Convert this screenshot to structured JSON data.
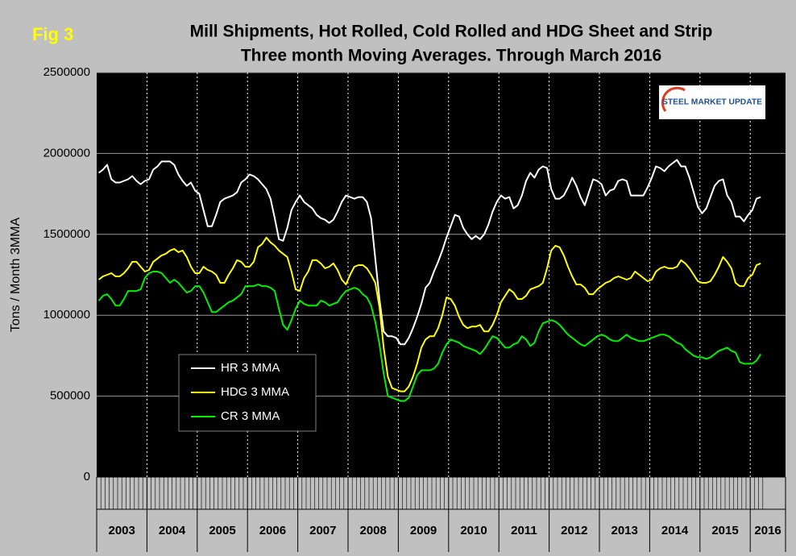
{
  "chart_data": {
    "type": "line",
    "figure_label": "Fig 3",
    "title": "Mill Shipments, Hot Rolled, Cold Rolled and HDG Sheet and Strip",
    "subtitle": "Three month Moving Averages. Through March 2016",
    "logo": "STEEL MARKET UPDATE",
    "y_label": "Tons / Month 3MMA",
    "categories": [
      "2003",
      "2004",
      "2005",
      "2006",
      "2007",
      "2008",
      "2009",
      "2010",
      "2011",
      "2012",
      "2013",
      "2014",
      "2015",
      "2016"
    ],
    "ylim": [
      0,
      2500000
    ],
    "yticks": [
      0,
      500000,
      1000000,
      1500000,
      2000000,
      2500000
    ],
    "grid": true,
    "legend_position": "lower-left",
    "series": [
      {
        "name": "HR 3 MMA",
        "color": "#ffffff",
        "values": [
          [
            1880000,
            1900000,
            1930000,
            1840000,
            1820000,
            1820000,
            1830000,
            1840000,
            1860000,
            1830000,
            1810000,
            1830000
          ],
          [
            1840000,
            1900000,
            1920000,
            1950000,
            1950000,
            1950000,
            1930000,
            1870000,
            1830000,
            1800000,
            1820000,
            1770000
          ],
          [
            1750000,
            1650000,
            1550000,
            1550000,
            1620000,
            1700000,
            1720000,
            1730000,
            1740000,
            1760000,
            1820000,
            1840000
          ],
          [
            1870000,
            1860000,
            1840000,
            1810000,
            1780000,
            1720000,
            1600000,
            1470000,
            1460000,
            1540000,
            1650000,
            1700000
          ],
          [
            1740000,
            1700000,
            1680000,
            1660000,
            1620000,
            1600000,
            1590000,
            1570000,
            1590000,
            1640000,
            1700000,
            1740000
          ],
          [
            1730000,
            1720000,
            1730000,
            1730000,
            1700000,
            1600000,
            1350000,
            1100000,
            900000,
            870000,
            870000,
            860000
          ],
          [
            820000,
            820000,
            860000,
            920000,
            990000,
            1070000,
            1170000,
            1200000,
            1270000,
            1330000,
            1400000,
            1480000
          ],
          [
            1550000,
            1620000,
            1610000,
            1540000,
            1500000,
            1470000,
            1490000,
            1470000,
            1500000,
            1560000,
            1640000,
            1700000
          ],
          [
            1740000,
            1720000,
            1730000,
            1660000,
            1680000,
            1740000,
            1830000,
            1880000,
            1850000,
            1900000,
            1920000,
            1910000
          ],
          [
            1780000,
            1720000,
            1720000,
            1740000,
            1790000,
            1850000,
            1800000,
            1730000,
            1680000,
            1760000,
            1840000,
            1830000
          ],
          [
            1810000,
            1740000,
            1770000,
            1780000,
            1830000,
            1840000,
            1830000,
            1740000,
            1740000,
            1740000,
            1740000,
            1790000
          ],
          [
            1850000,
            1920000,
            1910000,
            1890000,
            1920000,
            1940000,
            1960000,
            1920000,
            1920000,
            1850000,
            1760000,
            1670000
          ],
          [
            1630000,
            1660000,
            1730000,
            1800000,
            1830000,
            1840000,
            1740000,
            1700000,
            1610000,
            1610000,
            1580000,
            1620000
          ],
          [
            1650000,
            1720000,
            1730000
          ]
        ]
      },
      {
        "name": "HDG 3 MMA",
        "color": "#ffff00",
        "values": [
          [
            1220000,
            1240000,
            1250000,
            1260000,
            1240000,
            1240000,
            1260000,
            1290000,
            1330000,
            1330000,
            1300000,
            1270000
          ],
          [
            1280000,
            1330000,
            1350000,
            1370000,
            1380000,
            1400000,
            1410000,
            1390000,
            1400000,
            1360000,
            1300000,
            1260000
          ],
          [
            1260000,
            1300000,
            1280000,
            1270000,
            1250000,
            1200000,
            1200000,
            1250000,
            1290000,
            1340000,
            1330000,
            1300000
          ],
          [
            1300000,
            1330000,
            1420000,
            1440000,
            1480000,
            1450000,
            1430000,
            1400000,
            1380000,
            1360000,
            1270000,
            1160000
          ],
          [
            1150000,
            1230000,
            1270000,
            1340000,
            1340000,
            1320000,
            1290000,
            1300000,
            1320000,
            1280000,
            1220000,
            1190000
          ],
          [
            1250000,
            1300000,
            1310000,
            1310000,
            1290000,
            1250000,
            1200000,
            1050000,
            800000,
            620000,
            550000,
            540000
          ],
          [
            530000,
            530000,
            560000,
            620000,
            700000,
            800000,
            850000,
            870000,
            870000,
            920000,
            1000000,
            1110000
          ],
          [
            1100000,
            1060000,
            990000,
            940000,
            920000,
            930000,
            930000,
            940000,
            900000,
            900000,
            940000,
            1000000
          ],
          [
            1080000,
            1120000,
            1160000,
            1140000,
            1100000,
            1100000,
            1120000,
            1160000,
            1170000,
            1180000,
            1200000,
            1290000
          ],
          [
            1400000,
            1430000,
            1420000,
            1370000,
            1300000,
            1240000,
            1190000,
            1190000,
            1170000,
            1130000,
            1130000,
            1160000
          ],
          [
            1180000,
            1200000,
            1210000,
            1230000,
            1240000,
            1230000,
            1220000,
            1230000,
            1270000,
            1250000,
            1230000,
            1210000
          ],
          [
            1220000,
            1270000,
            1290000,
            1300000,
            1290000,
            1290000,
            1300000,
            1340000,
            1320000,
            1290000,
            1250000,
            1210000
          ],
          [
            1200000,
            1200000,
            1210000,
            1250000,
            1300000,
            1360000,
            1330000,
            1290000,
            1200000,
            1180000,
            1180000,
            1230000
          ],
          [
            1250000,
            1310000,
            1320000
          ]
        ]
      },
      {
        "name": "CR 3 MMA",
        "color": "#00ee00",
        "values": [
          [
            1090000,
            1120000,
            1130000,
            1100000,
            1060000,
            1060000,
            1100000,
            1150000,
            1150000,
            1150000,
            1160000,
            1230000
          ],
          [
            1260000,
            1270000,
            1270000,
            1260000,
            1230000,
            1200000,
            1220000,
            1200000,
            1170000,
            1140000,
            1150000,
            1180000
          ],
          [
            1180000,
            1140000,
            1080000,
            1020000,
            1020000,
            1040000,
            1060000,
            1080000,
            1090000,
            1110000,
            1130000,
            1180000
          ],
          [
            1180000,
            1180000,
            1190000,
            1180000,
            1180000,
            1170000,
            1150000,
            1040000,
            940000,
            910000,
            970000,
            1040000
          ],
          [
            1090000,
            1070000,
            1060000,
            1060000,
            1060000,
            1090000,
            1080000,
            1060000,
            1070000,
            1080000,
            1120000,
            1150000
          ],
          [
            1160000,
            1170000,
            1160000,
            1130000,
            1110000,
            1060000,
            960000,
            820000,
            640000,
            500000,
            490000,
            480000
          ],
          [
            470000,
            470000,
            490000,
            560000,
            630000,
            660000,
            660000,
            660000,
            670000,
            700000,
            770000,
            820000
          ],
          [
            850000,
            840000,
            830000,
            810000,
            800000,
            790000,
            780000,
            760000,
            790000,
            830000,
            870000,
            860000
          ],
          [
            830000,
            800000,
            800000,
            820000,
            830000,
            870000,
            850000,
            810000,
            830000,
            900000,
            950000,
            960000
          ],
          [
            970000,
            960000,
            940000,
            910000,
            880000,
            860000,
            840000,
            820000,
            810000,
            830000,
            850000,
            870000
          ],
          [
            880000,
            870000,
            850000,
            840000,
            840000,
            860000,
            880000,
            860000,
            850000,
            840000,
            840000,
            850000
          ],
          [
            860000,
            870000,
            880000,
            880000,
            870000,
            850000,
            830000,
            820000,
            790000,
            770000,
            750000,
            740000
          ],
          [
            740000,
            730000,
            740000,
            760000,
            780000,
            790000,
            800000,
            780000,
            770000,
            710000,
            700000,
            700000
          ],
          [
            700000,
            720000,
            760000
          ]
        ]
      }
    ]
  }
}
